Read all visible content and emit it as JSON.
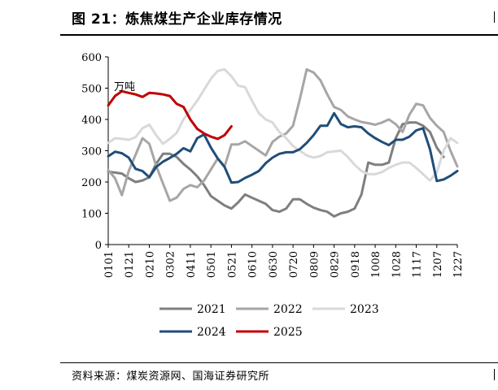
{
  "header": {
    "title": "图 21：炼焦煤生产企业库存情况"
  },
  "footer": {
    "source": "资料来源：煤炭资源网、国海证券研究所"
  },
  "chart_data": {
    "type": "line",
    "unit_label": "万吨",
    "ylim": [
      0,
      600
    ],
    "yticks": [
      0,
      100,
      200,
      300,
      400,
      500,
      600
    ],
    "x_tick_labels": [
      "0101",
      "0121",
      "0210",
      "0302",
      "0411",
      "0501",
      "0521",
      "0610",
      "0630",
      "0720",
      "0809",
      "0829",
      "0918",
      "1008",
      "1028",
      "1117",
      "1207",
      "1227"
    ],
    "x_count": 52,
    "series": [
      {
        "name": "2021",
        "color": "#7f7f7f",
        "values": [
          233,
          230,
          227,
          212,
          200,
          205,
          215,
          258,
          290,
          290,
          280,
          258,
          240,
          218,
          190,
          155,
          140,
          125,
          115,
          135,
          160,
          150,
          140,
          130,
          110,
          105,
          115,
          145,
          145,
          130,
          118,
          110,
          105,
          90,
          100,
          105,
          115,
          160,
          262,
          255,
          255,
          262,
          340,
          385,
          390,
          390,
          380,
          360,
          310,
          280,
          null,
          null
        ]
      },
      {
        "name": "2022",
        "color": "#a6a6a6",
        "values": [
          238,
          212,
          158,
          235,
          287,
          340,
          322,
          252,
          195,
          140,
          150,
          178,
          190,
          183,
          205,
          240,
          275,
          250,
          320,
          320,
          330,
          315,
          300,
          285,
          328,
          345,
          355,
          380,
          465,
          560,
          550,
          525,
          480,
          440,
          430,
          410,
          400,
          392,
          388,
          383,
          390,
          400,
          385,
          360,
          415,
          450,
          445,
          405,
          380,
          360,
          300,
          250
        ]
      },
      {
        "name": "2023",
        "color": "#d9d9d9",
        "values": [
          325,
          340,
          338,
          335,
          343,
          372,
          383,
          350,
          322,
          338,
          357,
          400,
          430,
          460,
          495,
          530,
          555,
          560,
          538,
          508,
          503,
          460,
          420,
          400,
          390,
          360,
          340,
          315,
          300,
          285,
          278,
          283,
          295,
          298,
          300,
          280,
          255,
          235,
          225,
          225,
          232,
          245,
          255,
          262,
          262,
          245,
          225,
          205,
          230,
          300,
          340,
          325
        ]
      },
      {
        "name": "2024",
        "color": "#1f4e79",
        "values": [
          282,
          297,
          292,
          278,
          242,
          235,
          215,
          248,
          265,
          277,
          290,
          308,
          298,
          340,
          352,
          310,
          275,
          248,
          198,
          200,
          213,
          223,
          235,
          260,
          278,
          290,
          295,
          295,
          305,
          325,
          350,
          380,
          380,
          420,
          385,
          375,
          378,
          375,
          355,
          340,
          328,
          318,
          335,
          335,
          345,
          365,
          372,
          305,
          203,
          208,
          220,
          235
        ]
      },
      {
        "name": "2025",
        "color": "#c00000",
        "values": [
          445,
          475,
          490,
          485,
          480,
          472,
          485,
          483,
          480,
          475,
          450,
          440,
          400,
          370,
          355,
          345,
          338,
          350,
          378,
          null,
          null,
          null,
          null,
          null,
          null,
          null,
          null,
          null,
          null,
          null,
          null,
          null,
          null,
          null,
          null,
          null,
          null,
          null,
          null,
          null,
          null,
          null,
          null,
          null,
          null,
          null,
          null,
          null,
          null,
          null,
          null,
          null
        ]
      }
    ],
    "legend_position": "bottom"
  }
}
